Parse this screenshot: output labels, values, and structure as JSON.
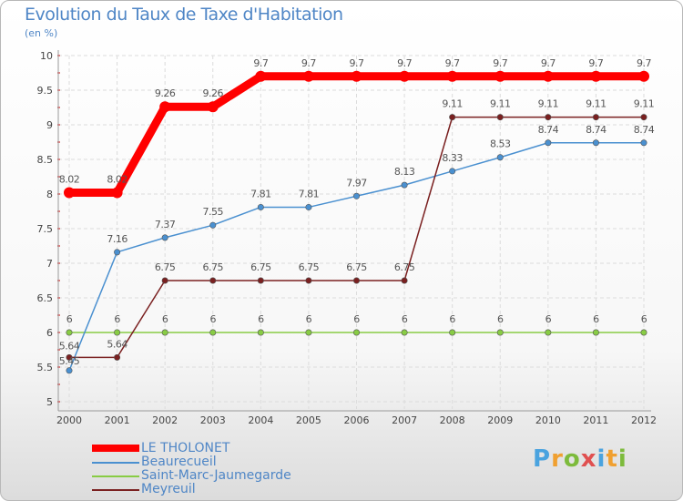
{
  "chart_data": {
    "type": "line",
    "title": "Evolution du Taux de Taxe d'Habitation",
    "ylabel": "(en %)",
    "xlabel": "",
    "categories": [
      "2000",
      "2001",
      "2002",
      "2003",
      "2004",
      "2005",
      "2006",
      "2007",
      "2008",
      "2009",
      "2010",
      "2011",
      "2012"
    ],
    "ylim": [
      5,
      10
    ],
    "yticks": [
      "5",
      "5.5",
      "6",
      "6.5",
      "7",
      "7.5",
      "8",
      "8.5",
      "9",
      "9.5",
      "10"
    ],
    "series": [
      {
        "name": "LE THOLONET",
        "color": "#ff0000",
        "values": [
          8.02,
          8.02,
          9.26,
          9.26,
          9.7,
          9.7,
          9.7,
          9.7,
          9.7,
          9.7,
          9.7,
          9.7,
          9.7
        ],
        "labels": [
          "8.02",
          "8.02",
          "9.26",
          "9.26",
          "9.7",
          "9.7",
          "9.7",
          "9.7",
          "9.7",
          "9.7",
          "9.7",
          "9.7",
          "9.7"
        ]
      },
      {
        "name": "Beaurecueil",
        "color": "#4a90d0",
        "values": [
          5.45,
          7.16,
          7.37,
          7.55,
          7.81,
          7.81,
          7.97,
          8.13,
          8.33,
          8.53,
          8.74,
          8.74,
          8.74
        ],
        "labels": [
          "5.45",
          "7.16",
          "7.37",
          "7.55",
          "7.81",
          "7.81",
          "7.97",
          "8.13",
          "8.33",
          "8.53",
          "8.74",
          "8.74",
          "8.74"
        ]
      },
      {
        "name": "Saint-Marc-Jaumegarde",
        "color": "#88cc44",
        "values": [
          6,
          6,
          6,
          6,
          6,
          6,
          6,
          6,
          6,
          6,
          6,
          6,
          6
        ],
        "labels": [
          "6",
          "6",
          "6",
          "6",
          "6",
          "6",
          "6",
          "6",
          "6",
          "6",
          "6",
          "6",
          "6"
        ]
      },
      {
        "name": "Meyreuil",
        "color": "#7a2020",
        "values": [
          5.64,
          5.64,
          6.75,
          6.75,
          6.75,
          6.75,
          6.75,
          6.75,
          9.11,
          9.11,
          9.11,
          9.11,
          9.11
        ],
        "labels": [
          "5.64",
          "5.64",
          "6.75",
          "6.75",
          "6.75",
          "6.75",
          "6.75",
          "6.75",
          "9.11",
          "9.11",
          "9.11",
          "9.11",
          "9.11"
        ]
      }
    ],
    "legend_position": "bottom-left"
  },
  "header": {
    "title": "Evolution du Taux de Taxe d'Habitation",
    "subtitle": "(en %)"
  },
  "legend": {
    "items": [
      "LE THOLONET",
      "Beaurecueil",
      "Saint-Marc-Jaumegarde",
      "Meyreuil"
    ]
  },
  "brand": {
    "letters": [
      "P",
      "r",
      "o",
      "x",
      "i",
      "t",
      "i"
    ]
  }
}
